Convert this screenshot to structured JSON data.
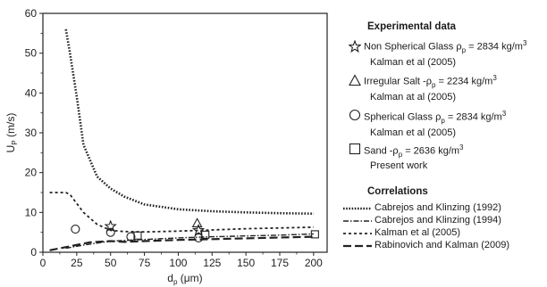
{
  "chart_data": {
    "type": "line",
    "xlabel": "d",
    "xlabel_sub": "p",
    "xlabel_unit": "(μm)",
    "ylabel": "U",
    "ylabel_sub": "P",
    "ylabel_unit": "(m/s)",
    "xlim": [
      0,
      210
    ],
    "ylim": [
      0,
      60
    ],
    "xticks": [
      0,
      25,
      50,
      75,
      100,
      125,
      150,
      175,
      200
    ],
    "yticks": [
      0,
      10,
      20,
      30,
      40,
      50,
      60
    ],
    "grid": false,
    "legend_placement": "right",
    "series": [
      {
        "name": "Cabrejos and Klinzing (1992)",
        "style": "dotted",
        "x": [
          17,
          20,
          25,
          30,
          40,
          50,
          60,
          75,
          100,
          125,
          150,
          175,
          200
        ],
        "y": [
          56,
          50,
          39,
          27,
          19,
          16,
          14,
          12,
          10.8,
          10.3,
          10,
          9.8,
          9.7
        ]
      },
      {
        "name": "Cabrejos and Klinzing (1994)",
        "style": "dash-dot",
        "x": [
          17,
          30,
          50,
          75,
          100,
          125,
          150,
          175,
          200
        ],
        "y": [
          1,
          1.8,
          2.8,
          3.2,
          3.6,
          3.9,
          4.1,
          4.3,
          4.6
        ]
      },
      {
        "name": "Kalman et al (2005)",
        "style": "short-dash",
        "x": [
          5,
          17,
          20,
          30,
          40,
          50,
          60,
          75,
          100,
          125,
          150,
          175,
          200
        ],
        "y": [
          15,
          15,
          14.5,
          10,
          7,
          5.5,
          5.2,
          5.1,
          5.3,
          5.6,
          5.9,
          6.1,
          6.3
        ]
      },
      {
        "name": "Rabinovich and Kalman (2009)",
        "style": "long-dash",
        "x": [
          5,
          20,
          35,
          50,
          60,
          75,
          100,
          125,
          150,
          175,
          200
        ],
        "y": [
          0.5,
          1.5,
          2.5,
          2.8,
          2.6,
          2.8,
          3.1,
          3.3,
          3.5,
          3.7,
          3.9
        ]
      }
    ],
    "points": [
      {
        "marker": "star",
        "x": 50,
        "y": 6.5
      },
      {
        "marker": "star",
        "x": 115,
        "y": 5.5
      },
      {
        "marker": "triangle",
        "x": 114,
        "y": 7.3
      },
      {
        "marker": "circle",
        "x": 24,
        "y": 5.8
      },
      {
        "marker": "circle",
        "x": 50,
        "y": 5.0
      },
      {
        "marker": "circle",
        "x": 65,
        "y": 3.9
      },
      {
        "marker": "circle",
        "x": 115,
        "y": 3.6
      },
      {
        "marker": "square",
        "x": 70,
        "y": 4.2
      },
      {
        "marker": "square",
        "x": 120,
        "y": 4.4
      },
      {
        "marker": "square",
        "x": 201,
        "y": 4.5
      }
    ]
  },
  "legend": {
    "experimental_title": "Experimental data",
    "experimental": [
      {
        "marker": "star",
        "label_a": "Non Spherical Glass ",
        "label_b": " = 2834 kg/m",
        "ref": "Kalman et al (2005)"
      },
      {
        "marker": "triangle",
        "label_a": "Irregular Salt -",
        "label_b": " = 2234  kg/m",
        "ref": "Kalman at al (2005)"
      },
      {
        "marker": "circle",
        "label_a": "Spherical Glass  ",
        "label_b": " = 2834 kg/m",
        "ref": "Kalman et al (2005)"
      },
      {
        "marker": "square",
        "label_a": "Sand -",
        "label_b": " = 2636 kg/m",
        "ref": "Present work"
      }
    ],
    "rho": "ρ",
    "rho_sub": "p",
    "cube": "3",
    "correlations_title": "Correlations",
    "correlations": [
      {
        "style": "dotted",
        "label": "Cabrejos and Klinzing (1992)"
      },
      {
        "style": "dash-dot",
        "label": "Cabrejos and Klinzing (1994)"
      },
      {
        "style": "short-dash",
        "label": "Kalman et al (2005)"
      },
      {
        "style": "long-dash",
        "label": "Rabinovich and Kalman (2009)"
      }
    ]
  }
}
